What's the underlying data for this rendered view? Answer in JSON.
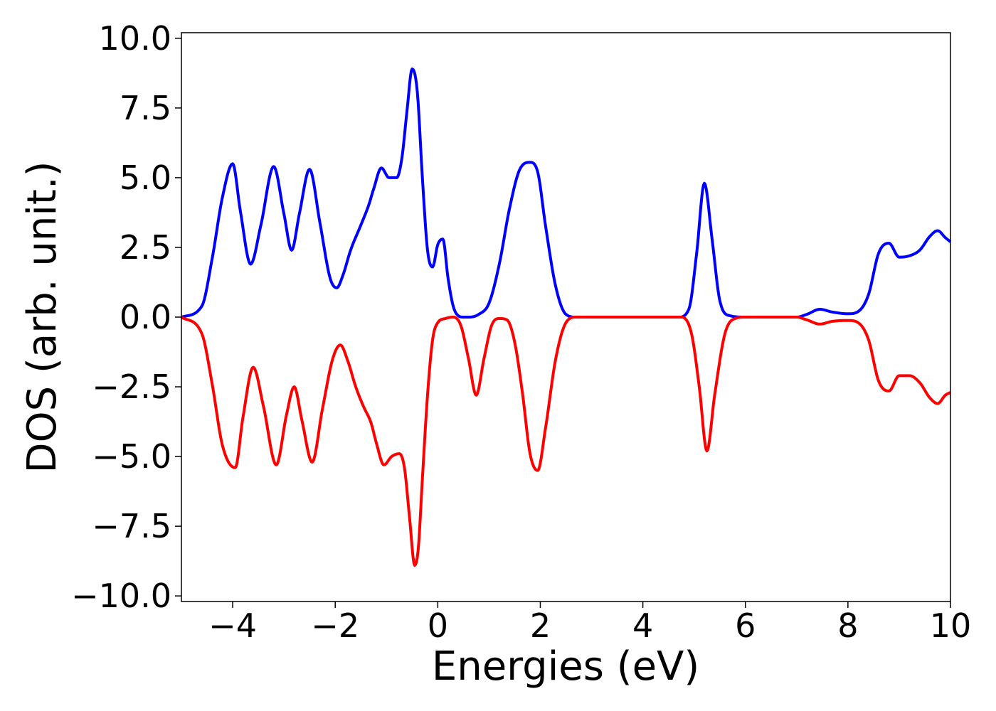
{
  "chart_data": {
    "type": "line",
    "title": "",
    "xlabel": "Energies (eV)",
    "ylabel": "DOS (arb. unit.)",
    "xlim": [
      -5,
      10
    ],
    "ylim": [
      -10.2,
      10.2
    ],
    "xticks": [
      -4,
      -2,
      0,
      2,
      4,
      6,
      8,
      10
    ],
    "xtick_labels": [
      "−4",
      "−2",
      "0",
      "2",
      "4",
      "6",
      "8",
      "10"
    ],
    "yticks": [
      10,
      7.5,
      5,
      2.5,
      0,
      -2.5,
      -5,
      -7.5,
      -10
    ],
    "ytick_labels": [
      "10.0",
      "7.5",
      "5.0",
      "2.5",
      "0.0",
      "−2.5",
      "−5.0",
      "−7.5",
      "−10.0"
    ],
    "grid": false,
    "legend": "none",
    "series": [
      {
        "color": "#0000ff",
        "x": [
          -5.0,
          -4.6,
          -4.4,
          -4.2,
          -4.0,
          -3.85,
          -3.65,
          -3.45,
          -3.2,
          -3.0,
          -2.85,
          -2.7,
          -2.5,
          -2.3,
          -2.1,
          -1.97,
          -1.85,
          -1.7,
          -1.5,
          -1.35,
          -1.25,
          -1.1,
          -0.95,
          -0.8,
          -0.7,
          -0.6,
          -0.5,
          -0.4,
          -0.3,
          -0.2,
          -0.1,
          0.0,
          0.1,
          0.2,
          0.3,
          0.4,
          0.5,
          0.6,
          0.8,
          1.0,
          1.2,
          1.4,
          1.6,
          1.8,
          1.95,
          2.1,
          2.3,
          2.5,
          2.7,
          3.0,
          4.0,
          4.7,
          4.9,
          5.05,
          5.2,
          5.35,
          5.5,
          5.7,
          6.0,
          7.0,
          7.2,
          7.45,
          7.7,
          8.0,
          8.2,
          8.4,
          8.6,
          8.8,
          9.0,
          9.2,
          9.4,
          9.6,
          9.75,
          9.9,
          10.0
        ],
        "y": [
          0.0,
          0.4,
          2.1,
          4.3,
          5.5,
          3.8,
          1.9,
          3.3,
          5.4,
          3.7,
          2.4,
          3.7,
          5.3,
          3.4,
          1.4,
          1.05,
          1.5,
          2.4,
          3.3,
          4.0,
          4.6,
          5.35,
          5.0,
          5.0,
          5.7,
          7.4,
          8.9,
          8.1,
          5.0,
          2.4,
          1.8,
          2.6,
          2.8,
          1.4,
          0.4,
          0.05,
          0.0,
          0.0,
          0.1,
          0.5,
          1.9,
          3.9,
          5.3,
          5.55,
          5.2,
          3.3,
          1.1,
          0.1,
          0.0,
          0.0,
          0.0,
          0.0,
          0.3,
          2.3,
          4.8,
          2.8,
          0.6,
          0.05,
          0.0,
          0.0,
          0.1,
          0.28,
          0.18,
          0.12,
          0.2,
          0.8,
          2.3,
          2.65,
          2.15,
          2.2,
          2.4,
          2.9,
          3.1,
          2.85,
          2.7
        ]
      },
      {
        "color": "#ff0000",
        "x": [
          -5.0,
          -4.6,
          -4.4,
          -4.2,
          -3.95,
          -3.8,
          -3.6,
          -3.4,
          -3.15,
          -2.95,
          -2.8,
          -2.65,
          -2.45,
          -2.25,
          -2.05,
          -1.9,
          -1.75,
          -1.6,
          -1.45,
          -1.3,
          -1.2,
          -1.05,
          -0.9,
          -0.75,
          -0.65,
          -0.55,
          -0.45,
          -0.38,
          -0.3,
          -0.2,
          -0.1,
          0.0,
          0.15,
          0.3,
          0.45,
          0.6,
          0.75,
          0.9,
          1.05,
          1.2,
          1.35,
          1.5,
          1.65,
          1.8,
          1.95,
          2.1,
          2.3,
          2.5,
          2.7,
          3.0,
          4.0,
          4.75,
          4.95,
          5.1,
          5.25,
          5.4,
          5.6,
          5.8,
          6.0,
          7.0,
          7.2,
          7.45,
          7.7,
          8.0,
          8.2,
          8.4,
          8.6,
          8.8,
          9.0,
          9.2,
          9.4,
          9.6,
          9.75,
          9.9,
          10.0
        ],
        "y": [
          0.0,
          -0.6,
          -2.4,
          -4.6,
          -5.4,
          -3.6,
          -1.8,
          -3.2,
          -5.3,
          -3.5,
          -2.5,
          -3.7,
          -5.2,
          -3.3,
          -1.5,
          -1.0,
          -1.6,
          -2.5,
          -3.2,
          -3.8,
          -4.5,
          -5.3,
          -5.0,
          -4.9,
          -5.4,
          -7.2,
          -8.9,
          -8.3,
          -5.8,
          -2.8,
          -0.8,
          -0.2,
          -0.05,
          0.0,
          -0.3,
          -1.5,
          -2.8,
          -1.5,
          -0.3,
          -0.05,
          -0.1,
          -0.9,
          -2.7,
          -4.9,
          -5.5,
          -4.0,
          -1.5,
          -0.2,
          0.0,
          0.0,
          0.0,
          0.0,
          -0.6,
          -2.5,
          -4.8,
          -2.8,
          -0.6,
          -0.05,
          0.0,
          0.0,
          -0.1,
          -0.25,
          -0.15,
          -0.12,
          -0.2,
          -0.8,
          -2.3,
          -2.65,
          -2.1,
          -2.1,
          -2.35,
          -2.9,
          -3.1,
          -2.8,
          -2.7
        ]
      }
    ]
  }
}
